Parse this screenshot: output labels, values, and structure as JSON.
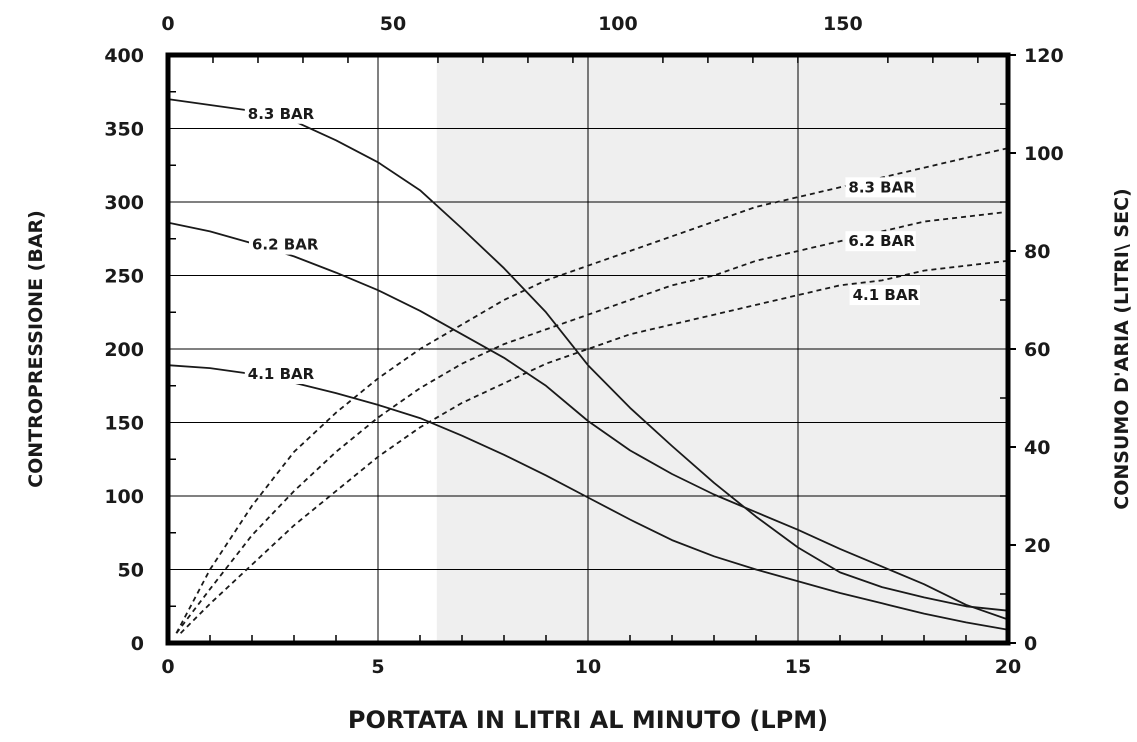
{
  "chart_data": {
    "type": "line",
    "title": "",
    "xlabel": "PORTATA IN LITRI AL MINUTO (LPM)",
    "ylabel_left": "CONTROPRESSIONE  (BAR)",
    "ylabel_right": "CONSUMO D'ARIA (LITRI\\ SEC)",
    "x_range": [
      0,
      20
    ],
    "x_ticks": [
      0,
      5,
      10,
      15,
      20
    ],
    "y_left_range": [
      0,
      400
    ],
    "y_left_ticks": [
      0,
      50,
      100,
      150,
      200,
      250,
      300,
      350,
      400
    ],
    "y_right_range": [
      0,
      120
    ],
    "y_right_ticks": [
      0,
      20,
      40,
      60,
      80,
      100,
      120
    ],
    "x_top_range": [
      0,
      200
    ],
    "x_top_ticks": [
      0,
      50,
      100,
      150
    ],
    "grid": true,
    "shaded_region_x": [
      6.4,
      20
    ],
    "shaded_color": "#efefef",
    "series": [
      {
        "name": "8.3 BAR",
        "style": "solid",
        "axis": "left",
        "x": [
          0,
          1,
          2,
          3,
          4,
          5,
          6,
          7,
          8,
          9,
          10,
          11,
          12,
          13,
          14,
          15,
          16,
          17,
          18,
          19,
          20
        ],
        "y": [
          370,
          366,
          362,
          355,
          342,
          327,
          308,
          282,
          255,
          225,
          189,
          160,
          134,
          109,
          86,
          65,
          48,
          38,
          31,
          25,
          22
        ]
      },
      {
        "name": "6.2 BAR",
        "style": "solid",
        "axis": "left",
        "x": [
          0,
          1,
          2,
          3,
          4,
          5,
          6,
          7,
          8,
          9,
          10,
          11,
          12,
          13,
          14,
          15,
          16,
          17,
          18,
          19,
          20
        ],
        "y": [
          286,
          280,
          272,
          263,
          252,
          240,
          226,
          210,
          194,
          175,
          151,
          131,
          115,
          101,
          89,
          77,
          64,
          52,
          40,
          26,
          16
        ]
      },
      {
        "name": "4.1 BAR",
        "style": "solid",
        "axis": "left",
        "x": [
          0,
          1,
          2,
          3,
          4,
          5,
          6,
          7,
          8,
          9,
          10,
          11,
          12,
          13,
          14,
          15,
          16,
          17,
          18,
          19,
          20
        ],
        "y": [
          189,
          187,
          183,
          177,
          170,
          162,
          153,
          141,
          128,
          114,
          99,
          84,
          70,
          59,
          50,
          42,
          34,
          27,
          20,
          14,
          9
        ]
      },
      {
        "name": "8.3 BAR",
        "style": "dashed",
        "axis": "right",
        "x": [
          0.2,
          1,
          2,
          3,
          4,
          5,
          6,
          7,
          8,
          9,
          10,
          11,
          12,
          13,
          14,
          15,
          16,
          17,
          18,
          19,
          20
        ],
        "y": [
          2,
          15,
          28,
          39,
          47,
          54,
          60,
          65,
          70,
          74,
          77,
          80,
          83,
          86,
          89,
          91,
          93,
          95,
          97,
          99,
          101
        ]
      },
      {
        "name": "6.2 BAR",
        "style": "dashed",
        "axis": "right",
        "x": [
          0.2,
          1,
          2,
          3,
          4,
          5,
          6,
          7,
          8,
          9,
          10,
          11,
          12,
          13,
          14,
          15,
          16,
          17,
          18,
          19,
          20
        ],
        "y": [
          2,
          11,
          22,
          31,
          39,
          46,
          52,
          57,
          61,
          64,
          67,
          70,
          73,
          75,
          78,
          80,
          82,
          84,
          86,
          87,
          88
        ]
      },
      {
        "name": "4.1 BAR",
        "style": "dashed",
        "axis": "right",
        "x": [
          0.3,
          1,
          2,
          3,
          4,
          5,
          6,
          7,
          8,
          9,
          10,
          11,
          12,
          13,
          14,
          15,
          16,
          17,
          18,
          19,
          20
        ],
        "y": [
          2,
          8,
          16,
          24,
          31,
          38,
          44,
          49,
          53,
          57,
          60,
          63,
          65,
          67,
          69,
          71,
          73,
          74,
          76,
          77,
          78
        ]
      }
    ],
    "curve_labels": [
      {
        "text": "8.3 BAR",
        "axis": "left",
        "x": 1.9,
        "y": 360
      },
      {
        "text": "6.2 BAR",
        "axis": "left",
        "x": 2.0,
        "y": 271
      },
      {
        "text": "4.1 BAR",
        "axis": "left",
        "x": 1.9,
        "y": 183
      },
      {
        "text": "8.3 BAR",
        "axis": "right",
        "x": 16.2,
        "y": 93
      },
      {
        "text": "6.2 BAR",
        "axis": "right",
        "x": 16.2,
        "y": 82
      },
      {
        "text": "4.1 BAR",
        "axis": "right",
        "x": 16.3,
        "y": 71
      }
    ],
    "colors": {
      "line": "#1a1a1a",
      "frame": "#000000",
      "grid": "#000000",
      "shade": "#efefef"
    }
  }
}
